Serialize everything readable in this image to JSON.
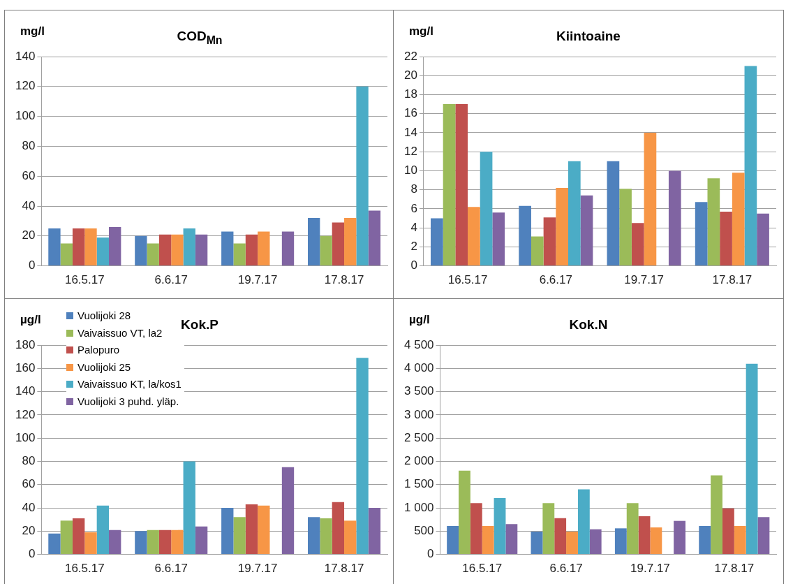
{
  "chart_data": [
    {
      "type": "bar",
      "title": "COD$_{Mn}$",
      "ylabel": "mg/l",
      "categories": [
        "16.5.17",
        "6.6.17",
        "19.7.17",
        "17.8.17"
      ],
      "ylim": [
        0,
        140
      ],
      "yticks": [
        0,
        20,
        40,
        60,
        80,
        100,
        120,
        140
      ],
      "grid": "y",
      "series": [
        {
          "color": "#4f81bd",
          "values": [
            25,
            20,
            23,
            32
          ]
        },
        {
          "color": "#9bbb59",
          "values": [
            15,
            15,
            15,
            20
          ]
        },
        {
          "color": "#c0504d",
          "values": [
            25,
            21,
            21,
            29
          ]
        },
        {
          "color": "#f79646",
          "values": [
            25,
            21,
            23,
            32
          ]
        },
        {
          "color": "#4bacc6",
          "values": [
            19,
            25,
            null,
            120
          ]
        },
        {
          "color": "#8064a2",
          "values": [
            26,
            21,
            23,
            37
          ]
        }
      ]
    },
    {
      "type": "bar",
      "title": "Kiintoaine",
      "ylabel": "mg/l",
      "categories": [
        "16.5.17",
        "6.6.17",
        "19.7.17",
        "17.8.17"
      ],
      "ylim": [
        0,
        22
      ],
      "yticks": [
        0,
        2,
        4,
        6,
        8,
        10,
        12,
        14,
        16,
        18,
        20,
        22
      ],
      "grid": "y",
      "series": [
        {
          "color": "#4f81bd",
          "values": [
            5,
            6.3,
            11,
            6.7
          ]
        },
        {
          "color": "#9bbb59",
          "values": [
            17,
            3.1,
            8.1,
            9.2
          ]
        },
        {
          "color": "#c0504d",
          "values": [
            17,
            5.1,
            4.5,
            5.7
          ]
        },
        {
          "color": "#f79646",
          "values": [
            6.2,
            8.2,
            14,
            9.8
          ]
        },
        {
          "color": "#4bacc6",
          "values": [
            12,
            11,
            null,
            21
          ]
        },
        {
          "color": "#8064a2",
          "values": [
            5.6,
            7.4,
            10,
            5.5
          ]
        }
      ]
    },
    {
      "type": "bar",
      "title": "Kok.P",
      "ylabel": "µg/l",
      "legend": "top left",
      "categories": [
        "16.5.17",
        "6.6.17",
        "19.7.17",
        "17.8.17"
      ],
      "ylim": [
        0,
        180
      ],
      "yticks": [
        0,
        20,
        40,
        60,
        80,
        100,
        120,
        140,
        160,
        180
      ],
      "grid": "y",
      "series": [
        {
          "name": "Vuolijoki 28",
          "color": "#4f81bd",
          "values": [
            18,
            20,
            40,
            32
          ]
        },
        {
          "name": "Vaivaissuo VT, la2",
          "color": "#9bbb59",
          "values": [
            29,
            21,
            32,
            31
          ]
        },
        {
          "name": "Palopuro",
          "color": "#c0504d",
          "values": [
            31,
            21,
            43,
            45
          ]
        },
        {
          "name": "Vuolijoki 25",
          "color": "#f79646",
          "values": [
            19,
            21,
            42,
            29
          ]
        },
        {
          "name": "Vaivaissuo KT, la/kos1",
          "color": "#4bacc6",
          "values": [
            42,
            80,
            null,
            169
          ]
        },
        {
          "name": "Vuolijoki 3 puhd. yläp.",
          "color": "#8064a2",
          "values": [
            21,
            24,
            75,
            40
          ]
        }
      ]
    },
    {
      "type": "bar",
      "title": "Kok.N",
      "ylabel": "µg/l",
      "categories": [
        "16.5.17",
        "6.6.17",
        "19.7.17",
        "17.8.17"
      ],
      "ylim": [
        0,
        4500
      ],
      "yticks": [
        0,
        500,
        {
          "value": 1000,
          "label": "1 000"
        },
        {
          "value": 1500,
          "label": "1 500"
        },
        {
          "value": 2000,
          "label": "2 000"
        },
        {
          "value": 2500,
          "label": "2 500"
        },
        {
          "value": 3000,
          "label": "3 000"
        },
        {
          "value": 3500,
          "label": "3 500"
        },
        {
          "value": 4000,
          "label": "4 000"
        },
        {
          "value": 4500,
          "label": "4 500"
        }
      ],
      "grid": "y",
      "series": [
        {
          "color": "#4f81bd",
          "values": [
            610,
            490,
            560,
            610
          ]
        },
        {
          "color": "#9bbb59",
          "values": [
            1800,
            1100,
            1100,
            1700
          ]
        },
        {
          "color": "#c0504d",
          "values": [
            1100,
            780,
            820,
            990
          ]
        },
        {
          "color": "#f79646",
          "values": [
            610,
            490,
            580,
            610
          ]
        },
        {
          "color": "#4bacc6",
          "values": [
            1210,
            1400,
            null,
            4100
          ]
        },
        {
          "color": "#8064a2",
          "values": [
            650,
            540,
            720,
            800
          ]
        }
      ]
    }
  ]
}
